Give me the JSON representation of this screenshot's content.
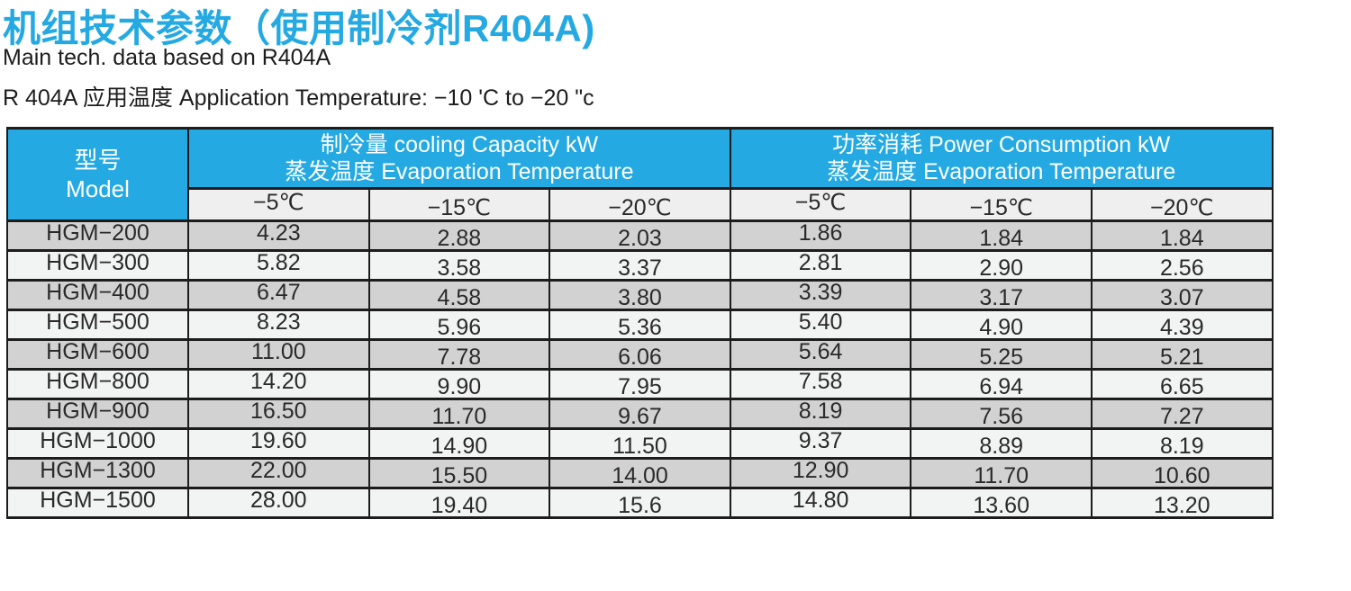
{
  "page": {
    "title": "机组技术参数（使用制冷剂R404A)",
    "subtitle": "Main tech. data based on R404A",
    "application_note": "R 404A 应用温度 Application Temperature: −10 'C to −20 \"c"
  },
  "colors": {
    "accent_blue": "#25A9E2",
    "header_text": "#FFFFFF",
    "row_gray": "#D2D2D2",
    "row_light": "#F2F3F3",
    "subheader_bg": "#EFEFEF",
    "border": "#1C1C1C",
    "body_text": "#2A2A2A"
  },
  "table": {
    "model_header": {
      "zh": "型号",
      "en": "Model"
    },
    "groups": [
      {
        "line1": "制冷量 cooling Capacity kW",
        "line2": "蒸发温度 Evaporation Temperature"
      },
      {
        "line1": "功率消耗 Power Consumption kW",
        "line2": "蒸发温度 Evaporation Temperature"
      }
    ],
    "temp_columns": [
      "−5℃",
      "−15℃",
      "−20℃",
      "−5℃",
      "−15℃",
      "−20℃"
    ],
    "rows": [
      {
        "model": "HGM−200",
        "values": [
          "4.23",
          "2.88",
          "2.03",
          "1.86",
          "1.84",
          "1.84"
        ]
      },
      {
        "model": "HGM−300",
        "values": [
          "5.82",
          "3.58",
          "3.37",
          "2.81",
          "2.90",
          "2.56"
        ]
      },
      {
        "model": "HGM−400",
        "values": [
          "6.47",
          "4.58",
          "3.80",
          "3.39",
          "3.17",
          "3.07"
        ]
      },
      {
        "model": "HGM−500",
        "values": [
          "8.23",
          "5.96",
          "5.36",
          "5.40",
          "4.90",
          "4.39"
        ]
      },
      {
        "model": "HGM−600",
        "values": [
          "11.00",
          "7.78",
          "6.06",
          "5.64",
          "5.25",
          "5.21"
        ]
      },
      {
        "model": "HGM−800",
        "values": [
          "14.20",
          "9.90",
          "7.95",
          "7.58",
          "6.94",
          "6.65"
        ]
      },
      {
        "model": "HGM−900",
        "values": [
          "16.50",
          "11.70",
          "9.67",
          "8.19",
          "7.56",
          "7.27"
        ]
      },
      {
        "model": "HGM−1000",
        "values": [
          "19.60",
          "14.90",
          "11.50",
          "9.37",
          "8.89",
          "8.19"
        ]
      },
      {
        "model": "HGM−1300",
        "values": [
          "22.00",
          "15.50",
          "14.00",
          "12.90",
          "11.70",
          "10.60"
        ]
      },
      {
        "model": "HGM−1500",
        "values": [
          "28.00",
          "19.40",
          "15.6",
          "14.80",
          "13.60",
          "13.20"
        ]
      }
    ]
  }
}
